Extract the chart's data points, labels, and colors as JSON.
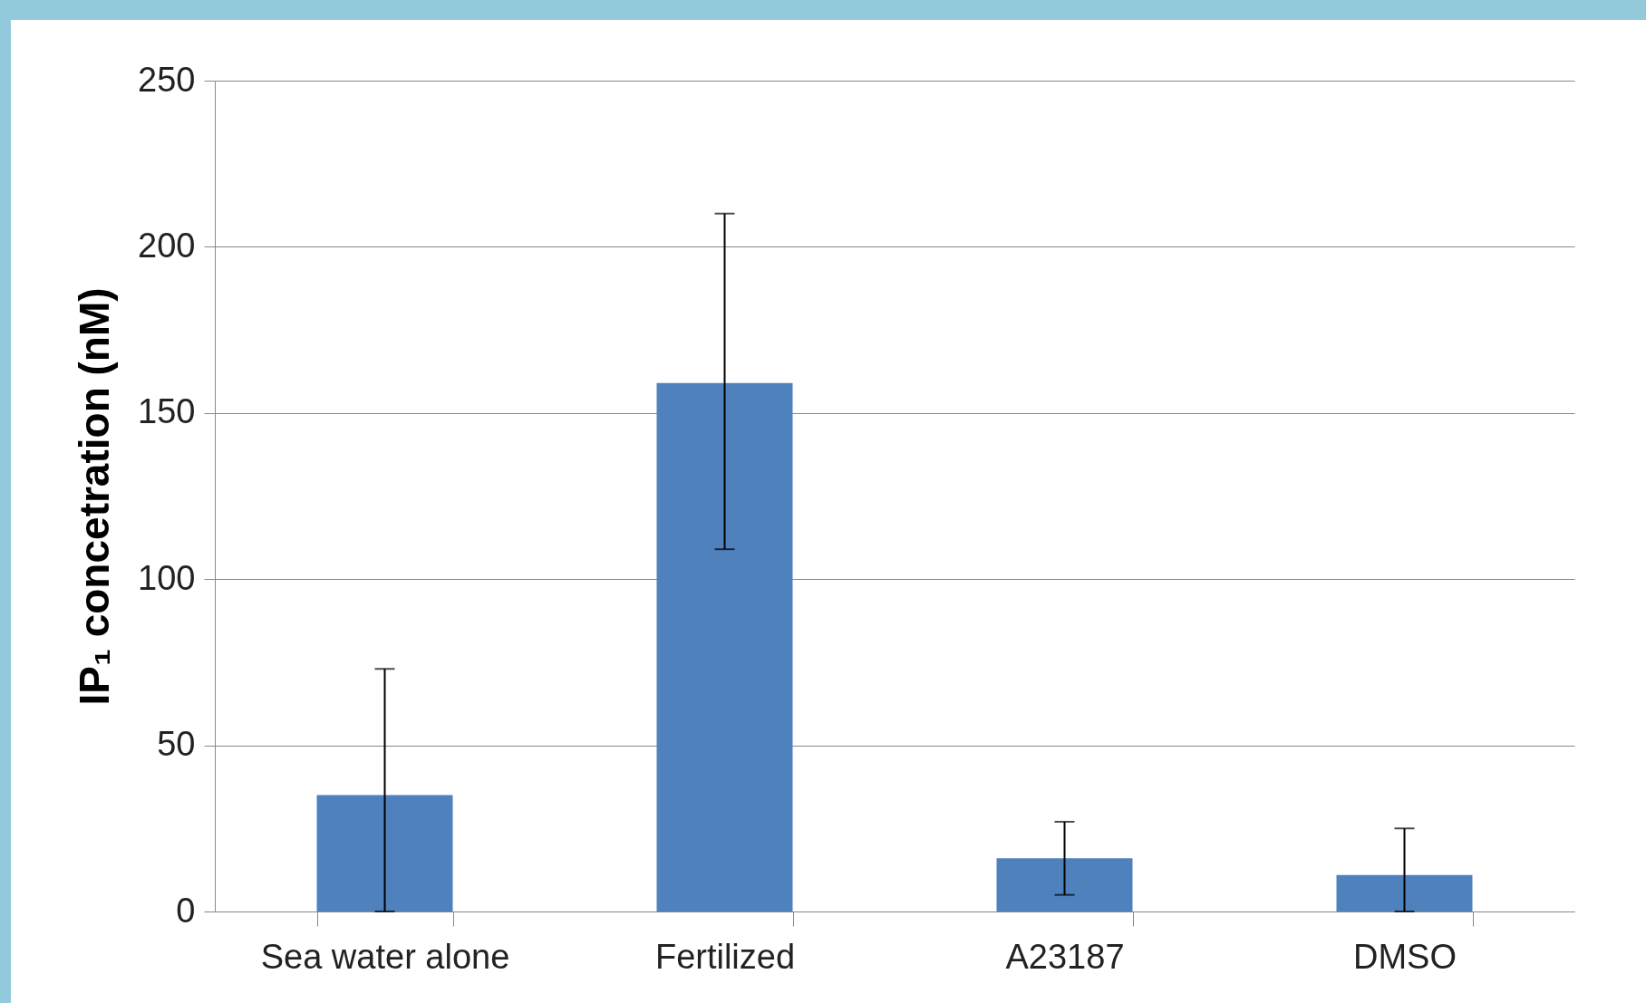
{
  "chart_data": {
    "type": "bar",
    "ylabel": "IP₁ concetration (nM)",
    "categories": [
      "Sea water alone",
      "Fertilized",
      "A23187",
      "DMSO"
    ],
    "values": [
      35,
      159,
      16,
      11
    ],
    "errors": [
      [
        0,
        73
      ],
      [
        109,
        210
      ],
      [
        5,
        27
      ],
      [
        0,
        25
      ]
    ],
    "color": "#4f81bd",
    "ylim": [
      0,
      250
    ],
    "yticks": [
      0,
      50,
      100,
      150,
      200,
      250
    ],
    "grid": "y"
  }
}
